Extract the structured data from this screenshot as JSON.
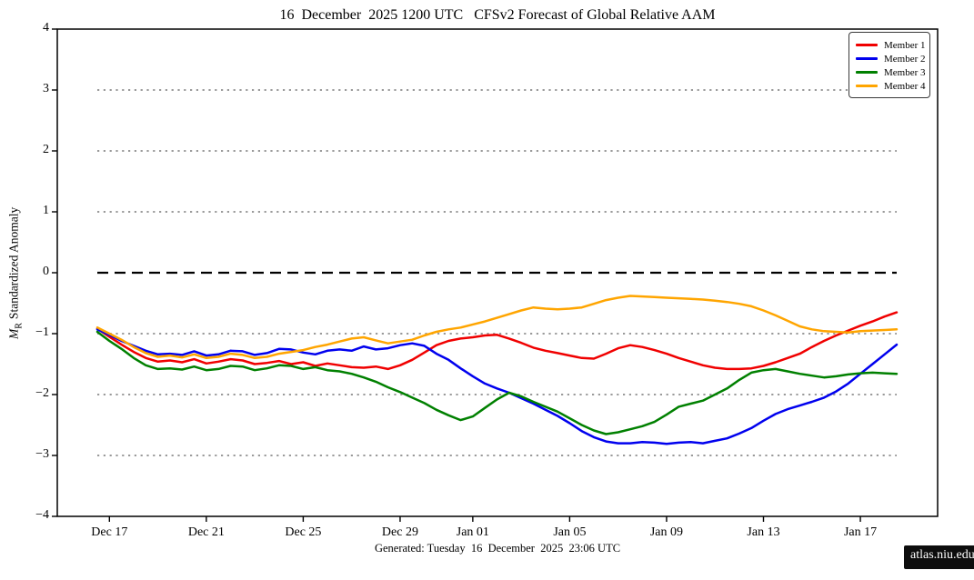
{
  "title": "16  December  2025 1200 UTC   CFSv2 Forecast of Global Relative AAM",
  "ylabel": {
    "m": "M",
    "sub": "R",
    "rest": "Standardized Anomaly"
  },
  "footer": {
    "generated": "Generated: Tuesday  16  December  2025  23:06 UTC",
    "badge": "atlas.niu.edu"
  },
  "chart_data": {
    "type": "line",
    "title": "16  December  2025 1200 UTC   CFSv2 Forecast of Global Relative AAM",
    "xlabel": "",
    "ylabel": "M_R Standardized Anomaly",
    "ylim": [
      -4,
      4
    ],
    "y_axis": {
      "tick_values": [
        4,
        3,
        2,
        1,
        0,
        -1,
        -2,
        -3,
        -4
      ],
      "tick_labels": [
        "4",
        "3",
        "2",
        "1",
        "0",
        "−1",
        "−2",
        "−3",
        "−4"
      ]
    },
    "x_axis": {
      "start": "Dec 16 1200 UTC",
      "end": "Jan 18",
      "units": "days since forecast start",
      "range_days": [
        0,
        33
      ],
      "ticks": [
        {
          "day": 0.5,
          "label": "Dec 17"
        },
        {
          "day": 4.5,
          "label": "Dec 21"
        },
        {
          "day": 8.5,
          "label": "Dec 25"
        },
        {
          "day": 12.5,
          "label": "Dec 29"
        },
        {
          "day": 15.5,
          "label": "Jan 01"
        },
        {
          "day": 19.5,
          "label": "Jan 05"
        },
        {
          "day": 23.5,
          "label": "Jan 09"
        },
        {
          "day": 27.5,
          "label": "Jan 13"
        },
        {
          "day": 31.5,
          "label": "Jan 17"
        }
      ]
    },
    "grid": {
      "dotted_levels": [
        3,
        2,
        1,
        -1,
        -2,
        -3
      ],
      "dotted_color": "#9a9a9a",
      "zero_line": {
        "value": 0,
        "style": "dashed",
        "color": "#000000"
      }
    },
    "legend": {
      "location": "upper right"
    },
    "x_step_days": 0.5,
    "series": [
      {
        "name": "Member 1",
        "color": "#f00000",
        "values": [
          -0.92,
          -1.05,
          -1.18,
          -1.3,
          -1.4,
          -1.46,
          -1.44,
          -1.47,
          -1.42,
          -1.49,
          -1.46,
          -1.42,
          -1.44,
          -1.5,
          -1.48,
          -1.45,
          -1.5,
          -1.47,
          -1.53,
          -1.49,
          -1.52,
          -1.55,
          -1.56,
          -1.54,
          -1.58,
          -1.52,
          -1.43,
          -1.31,
          -1.19,
          -1.12,
          -1.08,
          -1.06,
          -1.03,
          -1.02,
          -1.08,
          -1.15,
          -1.23,
          -1.28,
          -1.32,
          -1.36,
          -1.4,
          -1.41,
          -1.33,
          -1.24,
          -1.19,
          -1.22,
          -1.27,
          -1.33,
          -1.4,
          -1.46,
          -1.52,
          -1.56,
          -1.58,
          -1.58,
          -1.57,
          -1.53,
          -1.47,
          -1.4,
          -1.33,
          -1.22,
          -1.12,
          -1.03,
          -0.95,
          -0.87,
          -0.8,
          -0.72,
          -0.65
        ]
      },
      {
        "name": "Member 2",
        "color": "#0000ee",
        "values": [
          -0.93,
          -1.02,
          -1.12,
          -1.2,
          -1.28,
          -1.34,
          -1.33,
          -1.35,
          -1.29,
          -1.36,
          -1.34,
          -1.28,
          -1.29,
          -1.35,
          -1.32,
          -1.25,
          -1.26,
          -1.31,
          -1.34,
          -1.28,
          -1.26,
          -1.28,
          -1.21,
          -1.26,
          -1.24,
          -1.19,
          -1.16,
          -1.2,
          -1.33,
          -1.43,
          -1.57,
          -1.7,
          -1.82,
          -1.9,
          -1.97,
          -2.06,
          -2.15,
          -2.25,
          -2.35,
          -2.47,
          -2.6,
          -2.7,
          -2.77,
          -2.8,
          -2.8,
          -2.78,
          -2.79,
          -2.81,
          -2.79,
          -2.78,
          -2.8,
          -2.76,
          -2.72,
          -2.64,
          -2.55,
          -2.43,
          -2.32,
          -2.24,
          -2.18,
          -2.12,
          -2.05,
          -1.95,
          -1.82,
          -1.66,
          -1.5,
          -1.34,
          -1.18
        ]
      },
      {
        "name": "Member 3",
        "color": "#008000",
        "values": [
          -0.97,
          -1.12,
          -1.25,
          -1.4,
          -1.52,
          -1.58,
          -1.57,
          -1.59,
          -1.54,
          -1.6,
          -1.58,
          -1.53,
          -1.54,
          -1.6,
          -1.57,
          -1.52,
          -1.53,
          -1.58,
          -1.55,
          -1.6,
          -1.62,
          -1.66,
          -1.72,
          -1.79,
          -1.88,
          -1.96,
          -2.05,
          -2.14,
          -2.25,
          -2.34,
          -2.42,
          -2.36,
          -2.22,
          -2.08,
          -1.97,
          -2.03,
          -2.12,
          -2.2,
          -2.28,
          -2.39,
          -2.5,
          -2.59,
          -2.65,
          -2.62,
          -2.57,
          -2.52,
          -2.45,
          -2.33,
          -2.2,
          -2.15,
          -2.1,
          -2.0,
          -1.9,
          -1.76,
          -1.64,
          -1.6,
          -1.58,
          -1.62,
          -1.66,
          -1.69,
          -1.72,
          -1.7,
          -1.67,
          -1.65,
          -1.64,
          -1.65,
          -1.66
        ]
      },
      {
        "name": "Member 4",
        "color": "#ffa500",
        "values": [
          -0.9,
          -1.0,
          -1.1,
          -1.22,
          -1.32,
          -1.38,
          -1.36,
          -1.39,
          -1.34,
          -1.4,
          -1.38,
          -1.33,
          -1.35,
          -1.4,
          -1.38,
          -1.33,
          -1.3,
          -1.27,
          -1.22,
          -1.18,
          -1.13,
          -1.08,
          -1.06,
          -1.11,
          -1.16,
          -1.13,
          -1.1,
          -1.03,
          -0.97,
          -0.93,
          -0.9,
          -0.85,
          -0.8,
          -0.74,
          -0.68,
          -0.62,
          -0.57,
          -0.59,
          -0.6,
          -0.59,
          -0.57,
          -0.51,
          -0.45,
          -0.41,
          -0.38,
          -0.39,
          -0.4,
          -0.41,
          -0.42,
          -0.43,
          -0.44,
          -0.46,
          -0.48,
          -0.51,
          -0.55,
          -0.62,
          -0.7,
          -0.79,
          -0.88,
          -0.93,
          -0.96,
          -0.97,
          -0.98,
          -0.96,
          -0.95,
          -0.94,
          -0.93
        ]
      }
    ]
  }
}
